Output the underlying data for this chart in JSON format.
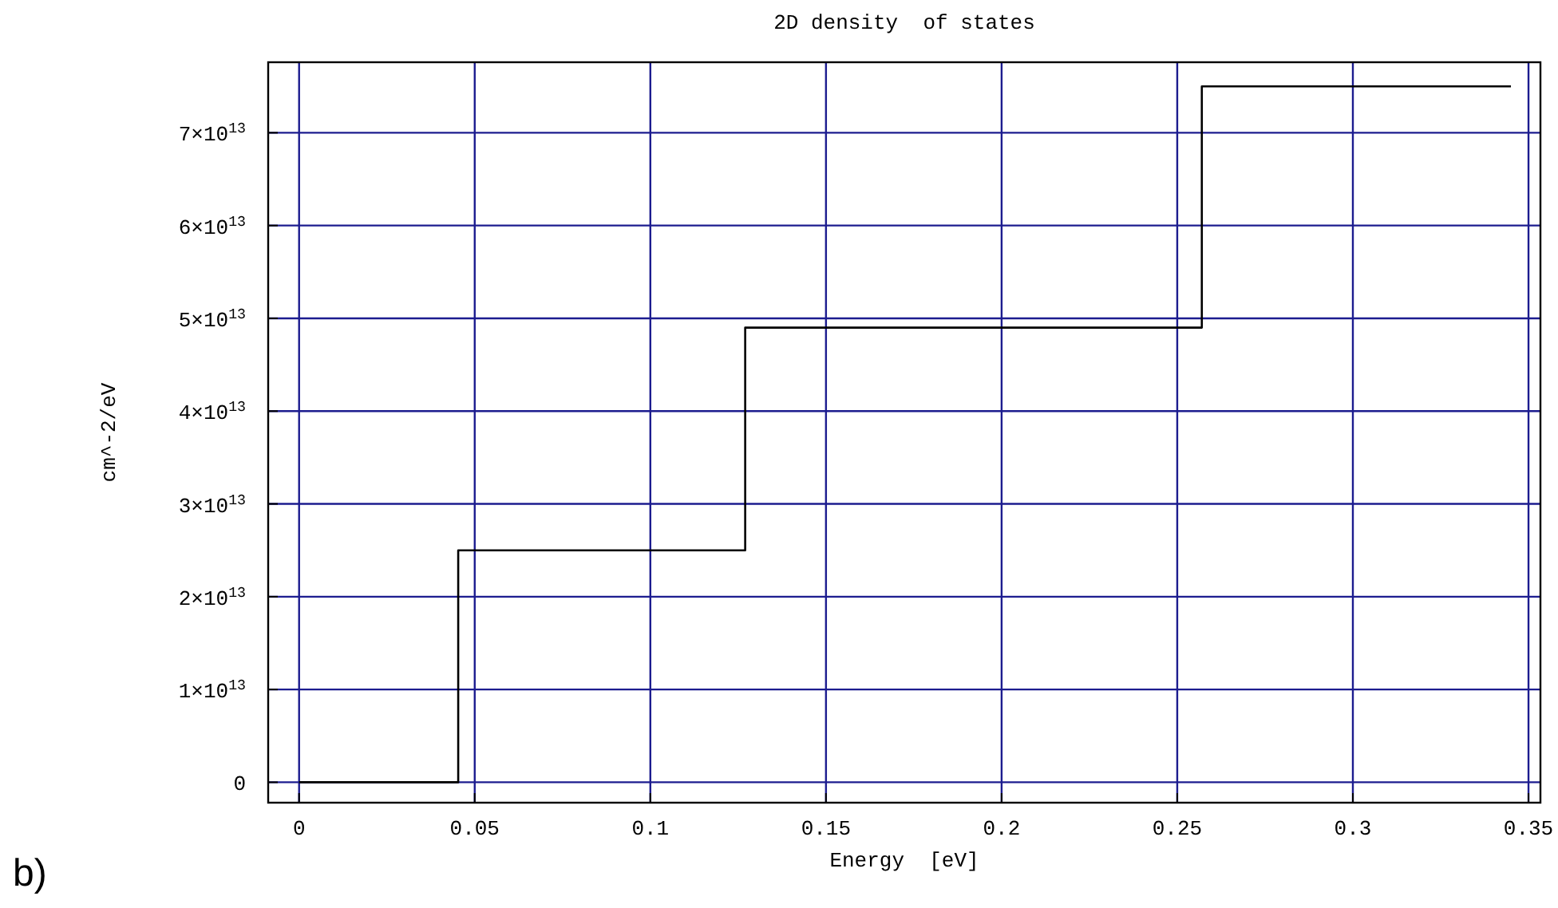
{
  "chart_data": {
    "type": "step",
    "title": "2D density  of states",
    "xlabel": "Energy  [eV]",
    "ylabel": "cm^-2/eV",
    "x": [
      0,
      0.0453,
      0.127,
      0.257,
      0.345
    ],
    "series": [
      {
        "color": "#000000",
        "values": [
          0,
          25000000000000.0,
          49000000000000.0,
          75000000000000.0,
          75000000000000.0
        ]
      }
    ],
    "xlim": [
      -0.0088,
      0.3534
    ],
    "xticks": [
      0,
      0.05,
      0.1,
      0.15,
      0.2,
      0.25,
      0.3,
      0.35
    ],
    "ylim": [
      -2200000000000.0,
      77600000000000.0
    ],
    "yticks": [
      0,
      {
        "value": 10000000000000.0,
        "label": "1×10$^{13}$"
      },
      {
        "value": 20000000000000.0,
        "label": "2×10$^{13}$"
      },
      {
        "value": 30000000000000.0,
        "label": "3×10$^{13}$"
      },
      {
        "value": 40000000000000.0,
        "label": "4×10$^{13}$"
      },
      {
        "value": 50000000000000.0,
        "label": "5×10$^{13}$"
      },
      {
        "value": 60000000000000.0,
        "label": "6×10$^{13}$"
      },
      {
        "value": 70000000000000.0,
        "label": "7×10$^{13}$"
      }
    ],
    "grid": true,
    "annotations": [
      "b)"
    ]
  }
}
